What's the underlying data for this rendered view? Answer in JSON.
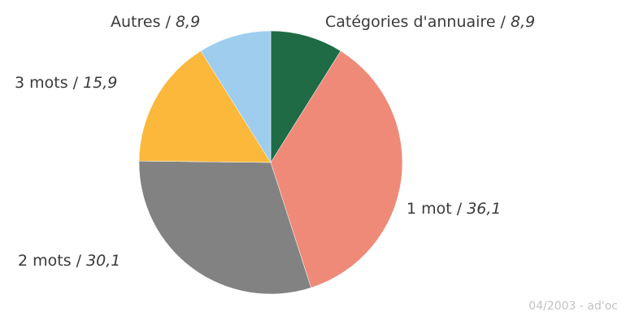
{
  "chart_data": {
    "type": "pie",
    "slices": [
      {
        "label": "Catégories d'annuaire",
        "value": 8.9,
        "value_text": "8,9",
        "color": "#1e6b45"
      },
      {
        "label": "1 mot",
        "value": 36.1,
        "value_text": "36,1",
        "color": "#ef8a78"
      },
      {
        "label": "2 mots",
        "value": 30.1,
        "value_text": "30,1",
        "color": "#828282"
      },
      {
        "label": "3 mots",
        "value": 15.9,
        "value_text": "15,9",
        "color": "#fbb83a"
      },
      {
        "label": "Autres",
        "value": 8.9,
        "value_text": "8,9",
        "color": "#9ecdee"
      }
    ],
    "credit": "04/2003 - ad'oc"
  }
}
